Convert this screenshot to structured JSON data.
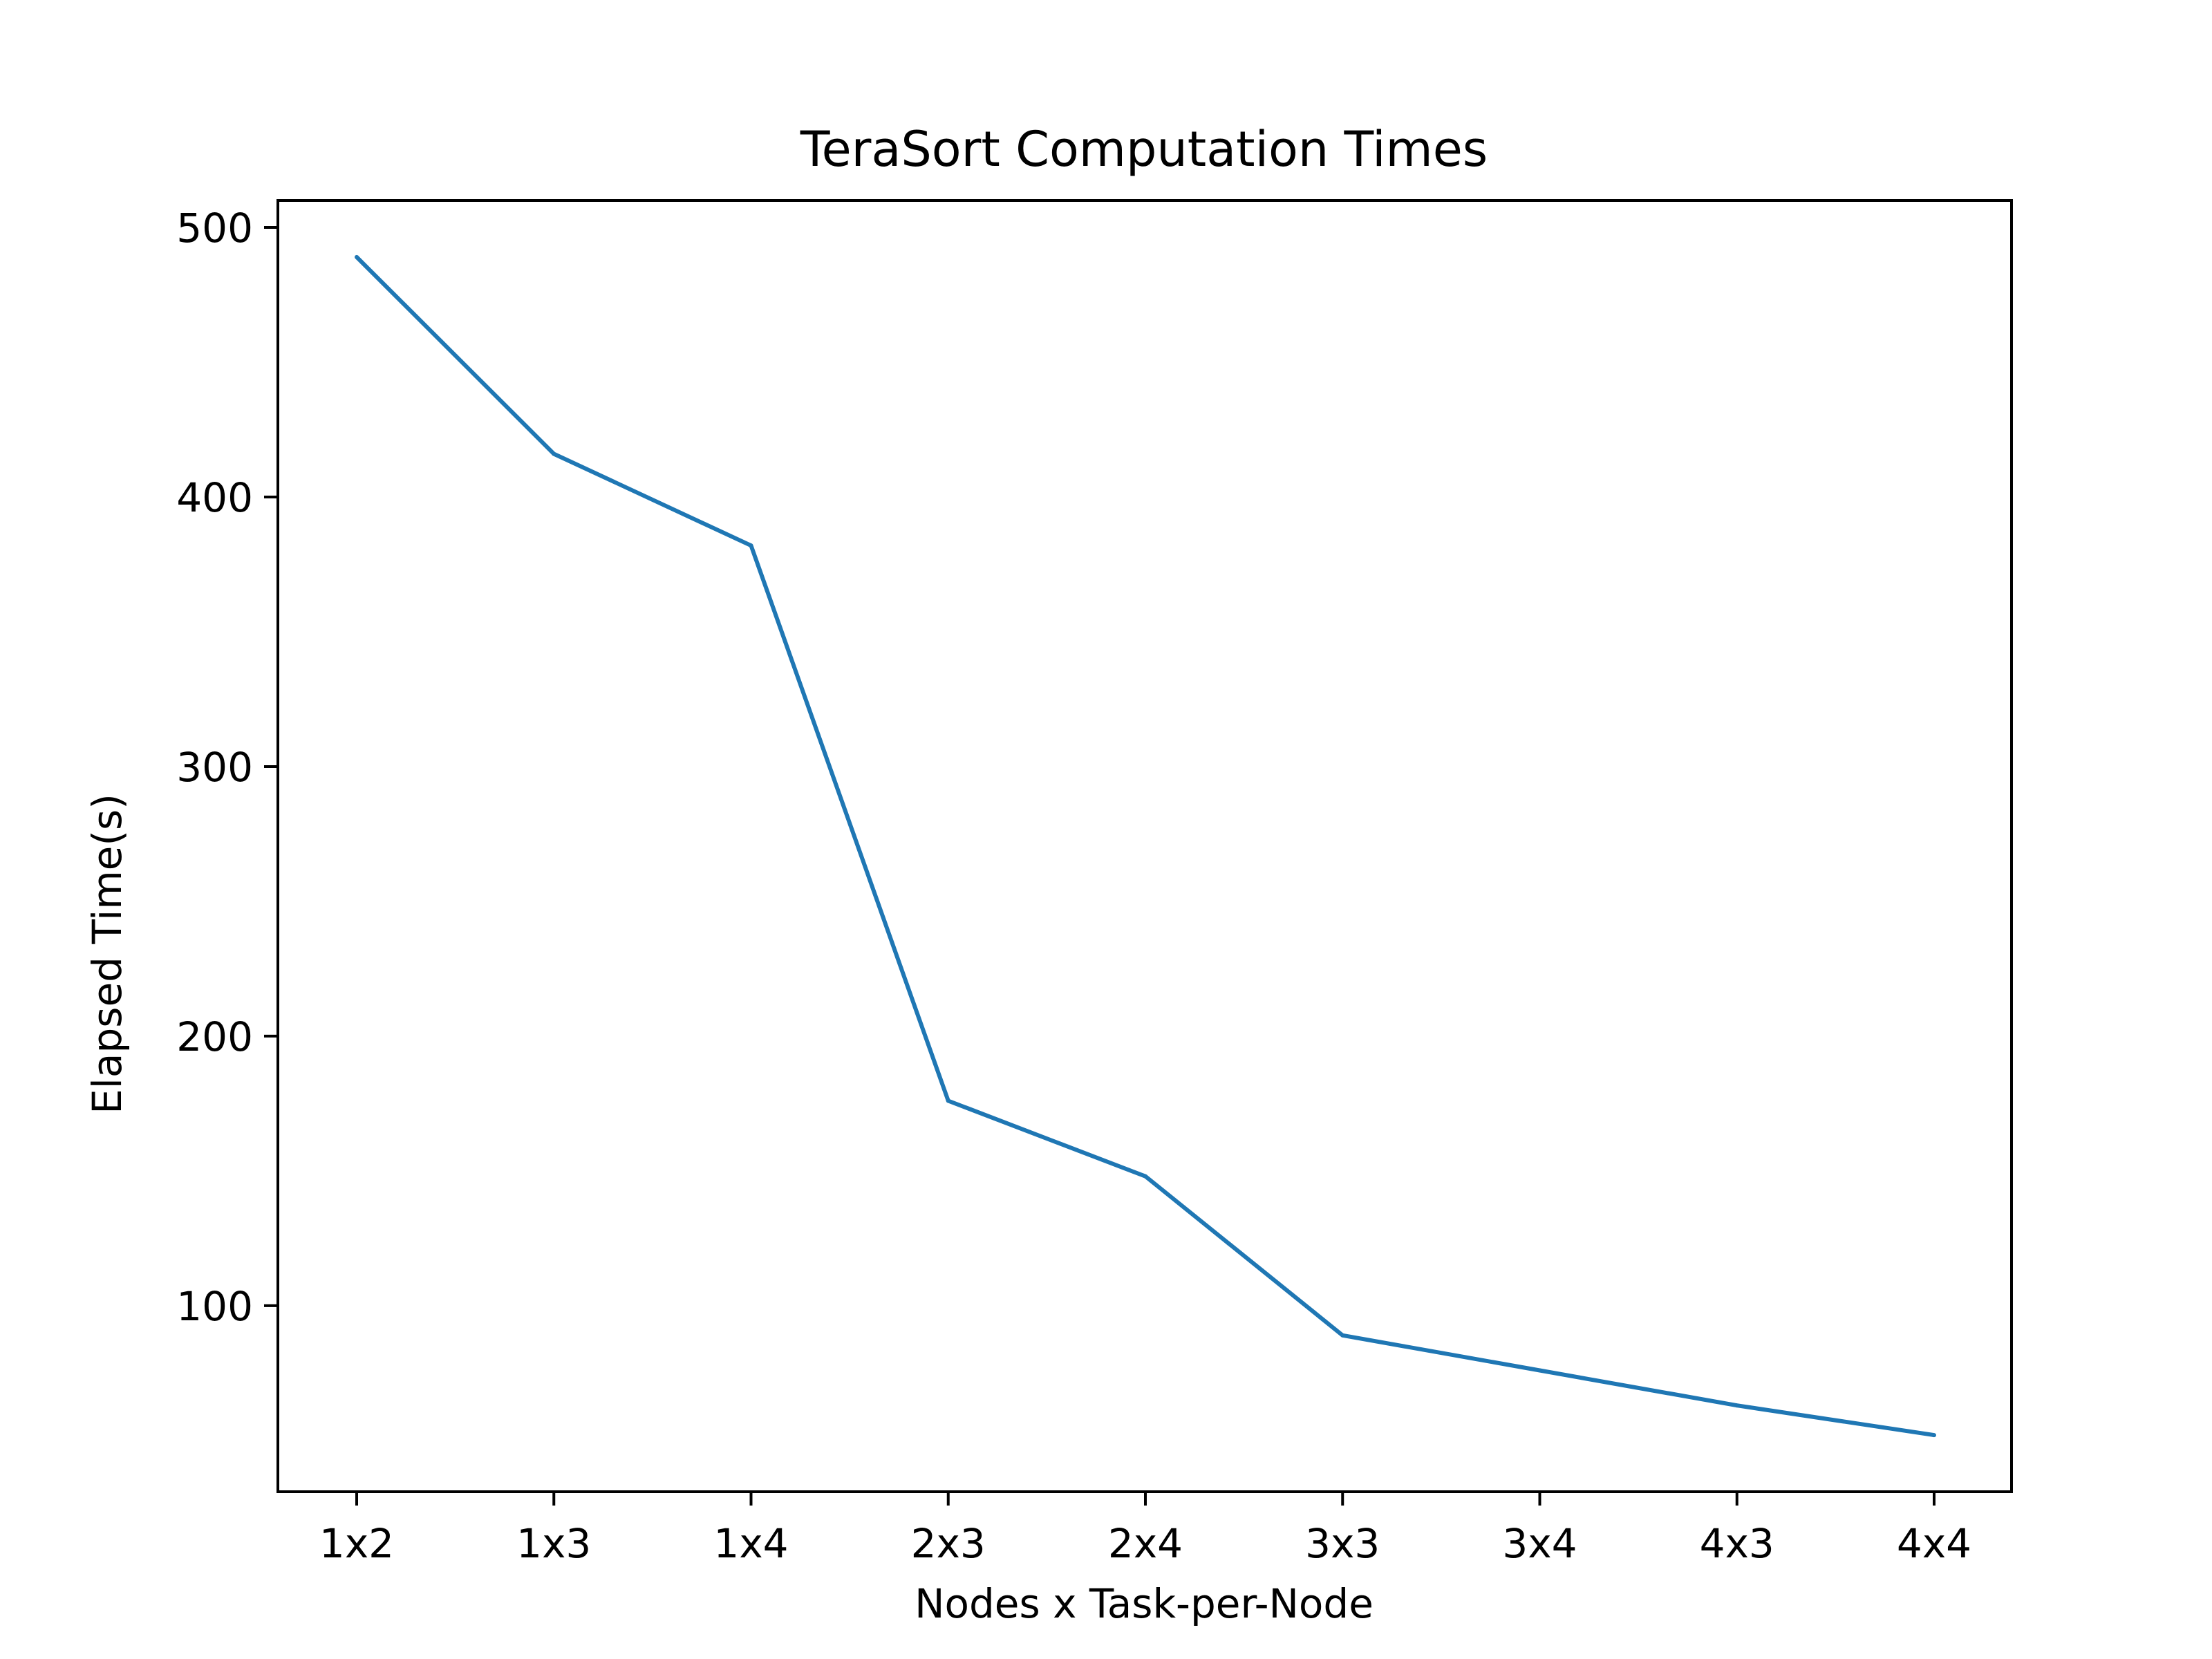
{
  "chart_data": {
    "type": "line",
    "title": "TeraSort Computation Times",
    "xlabel": "Nodes x Task-per-Node",
    "ylabel": "Elapsed Time(s)",
    "categories": [
      "1x2",
      "1x3",
      "1x4",
      "2x3",
      "2x4",
      "3x3",
      "3x4",
      "4x3",
      "4x4"
    ],
    "series": [
      {
        "values": [
          489,
          416,
          382,
          176,
          148,
          89,
          76,
          63,
          52
        ],
        "color": "#1f77b4"
      }
    ],
    "yticks": [
      "100",
      "200",
      "300",
      "400",
      "500"
    ],
    "ylim": [
      31,
      510
    ],
    "grid": false,
    "legend": "none"
  }
}
